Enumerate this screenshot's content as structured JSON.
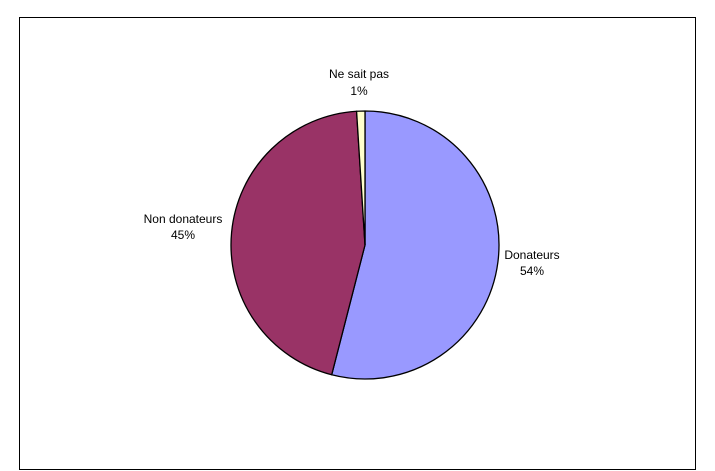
{
  "chart_data": {
    "type": "pie",
    "title": "",
    "slices": [
      {
        "label": "Donateurs",
        "value": 54,
        "value_label": "54%",
        "color": "#9999ff"
      },
      {
        "label": "Non donateurs",
        "value": 45,
        "value_label": "45%",
        "color": "#993366"
      },
      {
        "label": "Ne sait pas",
        "value": 1,
        "value_label": "1%",
        "color": "#ffffcc"
      }
    ],
    "start_angle_deg": 0,
    "direction": "clockwise",
    "legend": "none"
  }
}
